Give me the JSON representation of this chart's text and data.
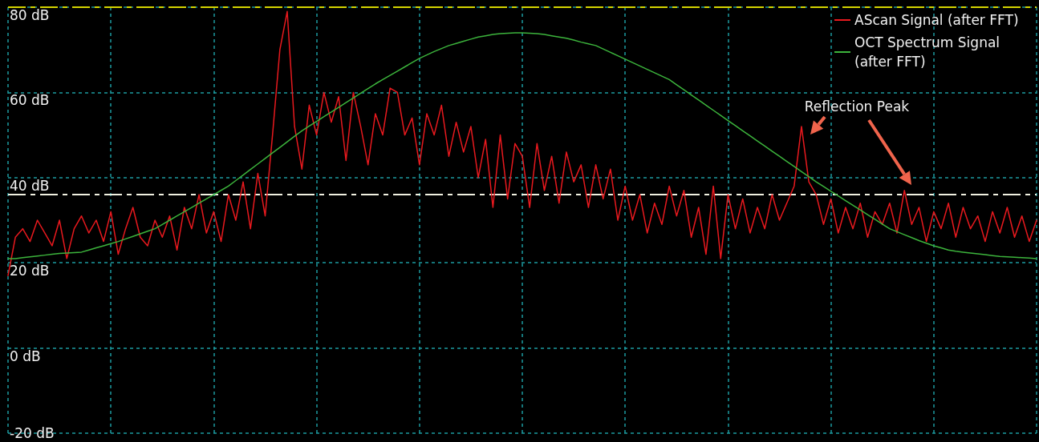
{
  "chart_data": {
    "type": "line",
    "categories": [
      null,
      null,
      null,
      null,
      null,
      null,
      null,
      null,
      null,
      null,
      null,
      null,
      null,
      null,
      null,
      null,
      null,
      null,
      null,
      null,
      null,
      null,
      null,
      null,
      null,
      null,
      null,
      null,
      null,
      null,
      null,
      null,
      null,
      null,
      null,
      null,
      null,
      null,
      null,
      null,
      null,
      null,
      null,
      null,
      null,
      null,
      null,
      null,
      null,
      null,
      null,
      null,
      null,
      null,
      null,
      null,
      null,
      null,
      null,
      null,
      null,
      null,
      null,
      null,
      null,
      null,
      null,
      null,
      null,
      null,
      null,
      null,
      null,
      null,
      null,
      null,
      null,
      null,
      null,
      null,
      null,
      null,
      null,
      null,
      null,
      null,
      null,
      null,
      null,
      null,
      null,
      null,
      null,
      null,
      null,
      null,
      null,
      null,
      null,
      null,
      null,
      null,
      null,
      null,
      null,
      null,
      null,
      null,
      null,
      null,
      null,
      null,
      null,
      null,
      null,
      null,
      null,
      null,
      null,
      null,
      null,
      null,
      null,
      null,
      null,
      null,
      null,
      null,
      null,
      null,
      null,
      null,
      null,
      null,
      null,
      null,
      null,
      null,
      null,
      null,
      null
    ],
    "series": [
      {
        "name": "AScan Signal (after FFT)",
        "color": "#e8191e",
        "values": [
          17,
          26,
          28,
          25,
          30,
          27,
          24,
          30,
          21,
          28,
          31,
          27,
          30,
          25,
          32,
          22,
          28,
          33,
          26,
          24,
          30,
          26,
          31,
          23,
          33,
          28,
          36,
          27,
          32,
          25,
          36,
          30,
          39,
          28,
          41,
          31,
          50,
          70,
          79,
          52,
          42,
          57,
          50,
          60,
          53,
          59,
          44,
          60,
          52,
          43,
          55,
          50,
          61,
          60,
          50,
          54,
          43,
          55,
          50,
          57,
          45,
          53,
          46,
          52,
          40,
          49,
          33,
          50,
          35,
          48,
          45,
          33,
          48,
          37,
          45,
          34,
          46,
          39,
          43,
          33,
          43,
          35,
          42,
          30,
          38,
          30,
          36,
          27,
          34,
          29,
          38,
          31,
          37,
          26,
          33,
          22,
          38,
          21,
          36,
          28,
          35,
          27,
          33,
          28,
          36,
          30,
          34,
          38,
          52,
          39,
          36,
          29,
          35,
          27,
          33,
          28,
          34,
          26,
          32,
          29,
          34,
          27,
          37,
          29,
          33,
          25,
          32,
          28,
          34,
          26,
          33,
          28,
          31,
          25,
          32,
          27,
          33,
          26,
          31,
          25,
          30
        ]
      },
      {
        "name": "OCT Spectrum Signal (after FFT)",
        "color": "#3cb43c",
        "values": [
          21,
          21,
          21.2,
          21.4,
          21.6,
          21.8,
          22,
          22.2,
          22.3,
          22.4,
          22.5,
          23,
          23.5,
          24,
          24.5,
          25,
          25.6,
          26.2,
          26.8,
          27.4,
          28,
          29,
          30,
          31,
          32,
          33,
          34,
          35,
          36,
          37,
          38,
          39.3,
          40.6,
          41.9,
          43.2,
          44.5,
          45.8,
          47.1,
          48.4,
          49.7,
          51,
          52.1,
          53.2,
          54.3,
          55.4,
          56.5,
          57.6,
          58.7,
          59.8,
          60.9,
          62,
          63,
          64,
          65,
          66,
          67,
          68,
          68.8,
          69.6,
          70.3,
          71,
          71.5,
          72,
          72.5,
          73,
          73.3,
          73.6,
          73.8,
          73.9,
          74,
          74,
          73.9,
          73.8,
          73.6,
          73.3,
          73,
          72.7,
          72.3,
          71.8,
          71.4,
          71,
          70.2,
          69.4,
          68.6,
          67.8,
          67,
          66.2,
          65.4,
          64.6,
          63.8,
          63,
          61.8,
          60.6,
          59.4,
          58.2,
          57,
          55.8,
          54.6,
          53.4,
          52.2,
          51,
          49.8,
          48.6,
          47.4,
          46.2,
          45,
          43.8,
          42.6,
          41.4,
          40.2,
          39,
          37.9,
          36.8,
          35.7,
          34.6,
          33.5,
          32.4,
          31.3,
          30.2,
          29.1,
          28,
          27.3,
          26.6,
          25.9,
          25.2,
          24.6,
          24,
          23.5,
          23,
          22.7,
          22.5,
          22.3,
          22.1,
          21.9,
          21.7,
          21.5,
          21.4,
          21.3,
          21.2,
          21.1,
          21
        ]
      }
    ],
    "ylim": [
      -20,
      80
    ],
    "yticks": [
      {
        "value": -20,
        "label": "-20 dB"
      },
      {
        "value": 0,
        "label": "0 dB"
      },
      {
        "value": 20,
        "label": "20 dB"
      },
      {
        "value": 40,
        "label": "40 dB"
      },
      {
        "value": 60,
        "label": "60 dB"
      },
      {
        "value": 80,
        "label": "80 dB"
      }
    ],
    "ref_lines": [
      {
        "axis": "y",
        "value": 36,
        "color": "#f0f0e0",
        "line_style": "dashed"
      },
      {
        "axis": "y",
        "value": 80,
        "color": "#d4d400",
        "line_style": "dashed"
      }
    ],
    "annotations": [
      "Reflection Peak"
    ],
    "grid": true,
    "legend": "top right",
    "marker": "none",
    "line_style": "solid"
  }
}
